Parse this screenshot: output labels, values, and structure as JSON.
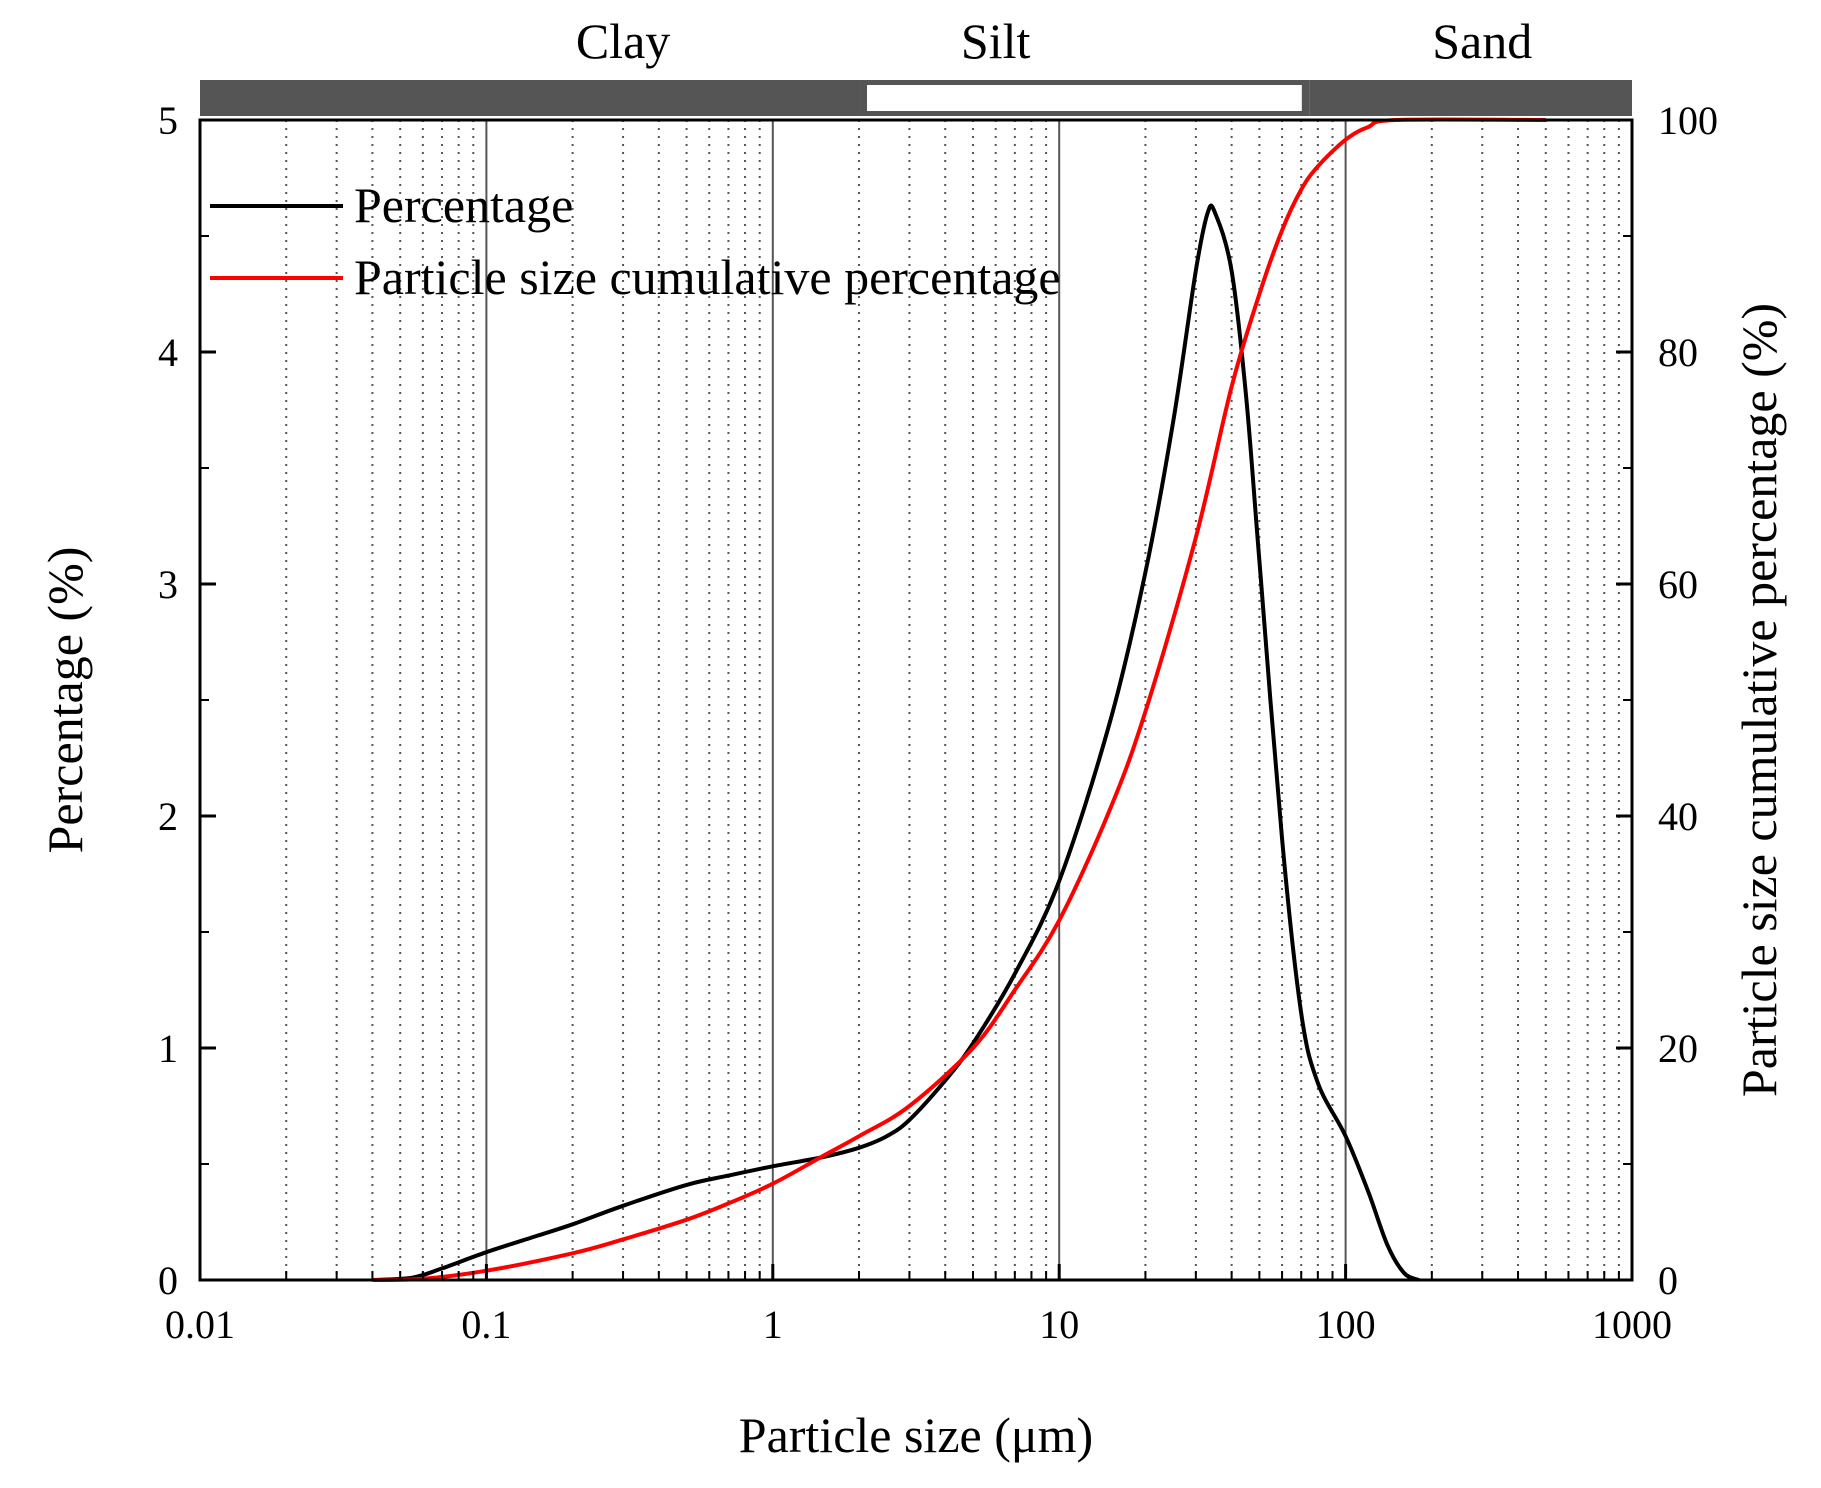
{
  "chart_data": {
    "type": "line",
    "xscale": "log",
    "xlim": [
      0.01,
      1000
    ],
    "ylim": [
      0,
      5
    ],
    "y2lim": [
      0,
      100
    ],
    "xlabel": "Particle size (μm)",
    "ylabel": "Percentage (%)",
    "y2label": "Particle size cumulative percentage (%)",
    "x_ticks": [
      0.01,
      0.1,
      1,
      10,
      100,
      1000
    ],
    "x_tick_labels": [
      "0.01",
      "0.1",
      "1",
      "10",
      "100",
      "1000"
    ],
    "y_ticks": [
      0,
      1,
      2,
      3,
      4,
      5
    ],
    "y_tick_labels": [
      "0",
      "1",
      "2",
      "3",
      "4",
      "5"
    ],
    "y2_ticks": [
      0,
      20,
      40,
      60,
      80,
      100
    ],
    "y2_tick_labels": [
      "0",
      "20",
      "40",
      "60",
      "80",
      "100"
    ],
    "grid": "vertical major solid, minor dotted",
    "legend_position": "top-left",
    "bands": [
      {
        "label": "Clay",
        "from": 0.01,
        "to": 2,
        "fill": "#555555"
      },
      {
        "label": "Silt",
        "from": 2,
        "to": 75,
        "fill": "#ffffff"
      },
      {
        "label": "Sand",
        "from": 75,
        "to": 1000,
        "fill": "#555555"
      }
    ],
    "series": [
      {
        "name": "Percentage",
        "color": "#000000",
        "axis": "left",
        "points": [
          [
            0.04,
            0
          ],
          [
            0.055,
            0.01
          ],
          [
            0.07,
            0.05
          ],
          [
            0.1,
            0.12
          ],
          [
            0.15,
            0.19
          ],
          [
            0.2,
            0.24
          ],
          [
            0.3,
            0.32
          ],
          [
            0.5,
            0.41
          ],
          [
            0.7,
            0.45
          ],
          [
            1,
            0.49
          ],
          [
            1.5,
            0.53
          ],
          [
            2,
            0.57
          ],
          [
            2.5,
            0.62
          ],
          [
            3,
            0.69
          ],
          [
            4,
            0.86
          ],
          [
            5,
            1.02
          ],
          [
            7,
            1.32
          ],
          [
            10,
            1.72
          ],
          [
            15,
            2.4
          ],
          [
            20,
            3.05
          ],
          [
            25,
            3.7
          ],
          [
            30,
            4.35
          ],
          [
            33,
            4.6
          ],
          [
            35,
            4.6
          ],
          [
            40,
            4.35
          ],
          [
            45,
            3.8
          ],
          [
            50,
            3.1
          ],
          [
            60,
            1.9
          ],
          [
            70,
            1.15
          ],
          [
            80,
            0.85
          ],
          [
            100,
            0.62
          ],
          [
            120,
            0.38
          ],
          [
            140,
            0.15
          ],
          [
            160,
            0.03
          ],
          [
            180,
            0
          ]
        ]
      },
      {
        "name": "Particle size cumulative percentage",
        "color": "#ff0000",
        "axis": "right",
        "points": [
          [
            0.04,
            0
          ],
          [
            0.06,
            0.1
          ],
          [
            0.1,
            0.8
          ],
          [
            0.2,
            2.3
          ],
          [
            0.3,
            3.5
          ],
          [
            0.5,
            5.2
          ],
          [
            0.7,
            6.6
          ],
          [
            1,
            8.3
          ],
          [
            1.5,
            10.7
          ],
          [
            2,
            12.4
          ],
          [
            3,
            15
          ],
          [
            5,
            20
          ],
          [
            7,
            25
          ],
          [
            10,
            31
          ],
          [
            15,
            40.5
          ],
          [
            20,
            49
          ],
          [
            30,
            64
          ],
          [
            40,
            77
          ],
          [
            50,
            85
          ],
          [
            60,
            90.5
          ],
          [
            70,
            94
          ],
          [
            80,
            96
          ],
          [
            100,
            98.3
          ],
          [
            120,
            99.4
          ],
          [
            150,
            100
          ],
          [
            500,
            100
          ]
        ]
      }
    ]
  }
}
